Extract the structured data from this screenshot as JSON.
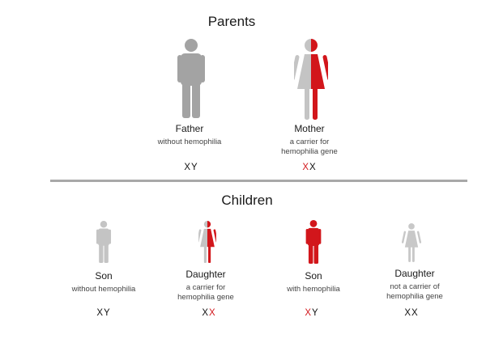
{
  "parents": {
    "heading": "Parents",
    "father": {
      "name": "Father",
      "desc": [
        "without hemophilia"
      ],
      "chromosomes": [
        "X",
        "Y"
      ],
      "figure": "male-figure-icon",
      "status": "unaffected"
    },
    "mother": {
      "name": "Mother",
      "desc": [
        "a carrier for",
        "hemophilia gene"
      ],
      "chromosomes": [
        "X",
        "X"
      ],
      "figure": "female-figure-icon",
      "status": "carrier"
    }
  },
  "children": {
    "heading": "Children",
    "items": [
      {
        "name": "Son",
        "desc": [
          "without hemophilia"
        ],
        "chromosomes": [
          "X",
          "Y"
        ],
        "figure": "male-figure-icon",
        "status": "unaffected"
      },
      {
        "name": "Daughter",
        "desc": [
          "a carrier for",
          "hemophilia gene"
        ],
        "chromosomes": [
          "X",
          "X"
        ],
        "figure": "female-figure-icon",
        "status": "carrier"
      },
      {
        "name": "Son",
        "desc": [
          "with hemophilia"
        ],
        "chromosomes": [
          "X",
          "Y"
        ],
        "figure": "male-figure-icon",
        "status": "affected"
      },
      {
        "name": "Daughter",
        "desc": [
          "not a carrier of",
          "hemophilia gene"
        ],
        "chromosomes": [
          "X",
          "X"
        ],
        "figure": "female-figure-icon",
        "status": "unaffected-light"
      }
    ]
  },
  "colors": {
    "affected": "#d2161b",
    "unaffected": "#a3a3a3",
    "unaffected_light": "#c4c4c4",
    "divider": "#a8a8a8"
  }
}
